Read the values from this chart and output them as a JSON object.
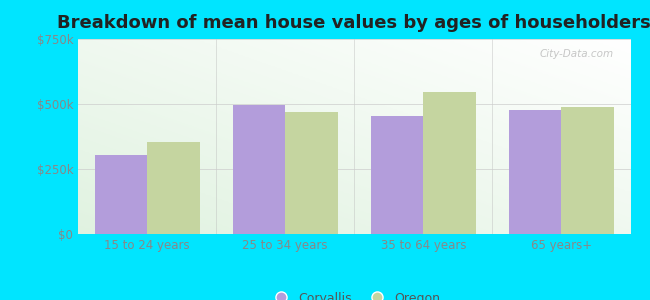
{
  "title": "Breakdown of mean house values by ages of householders",
  "categories": [
    "15 to 24 years",
    "25 to 34 years",
    "35 to 64 years",
    "65 years+"
  ],
  "corvallis_values": [
    305000,
    495000,
    455000,
    475000
  ],
  "oregon_values": [
    355000,
    470000,
    545000,
    490000
  ],
  "corvallis_color": "#b39ddb",
  "oregon_color": "#c5d5a0",
  "ylim": [
    0,
    750000
  ],
  "yticks": [
    0,
    250000,
    500000,
    750000
  ],
  "ytick_labels": [
    "$0",
    "$250k",
    "$500k",
    "$750k"
  ],
  "outer_background": "#00e5ff",
  "legend_labels": [
    "Corvallis",
    "Oregon"
  ],
  "watermark": "City-Data.com",
  "title_fontsize": 13,
  "bar_width": 0.38,
  "tick_label_color": "#888888",
  "grid_color": "#cccccc"
}
